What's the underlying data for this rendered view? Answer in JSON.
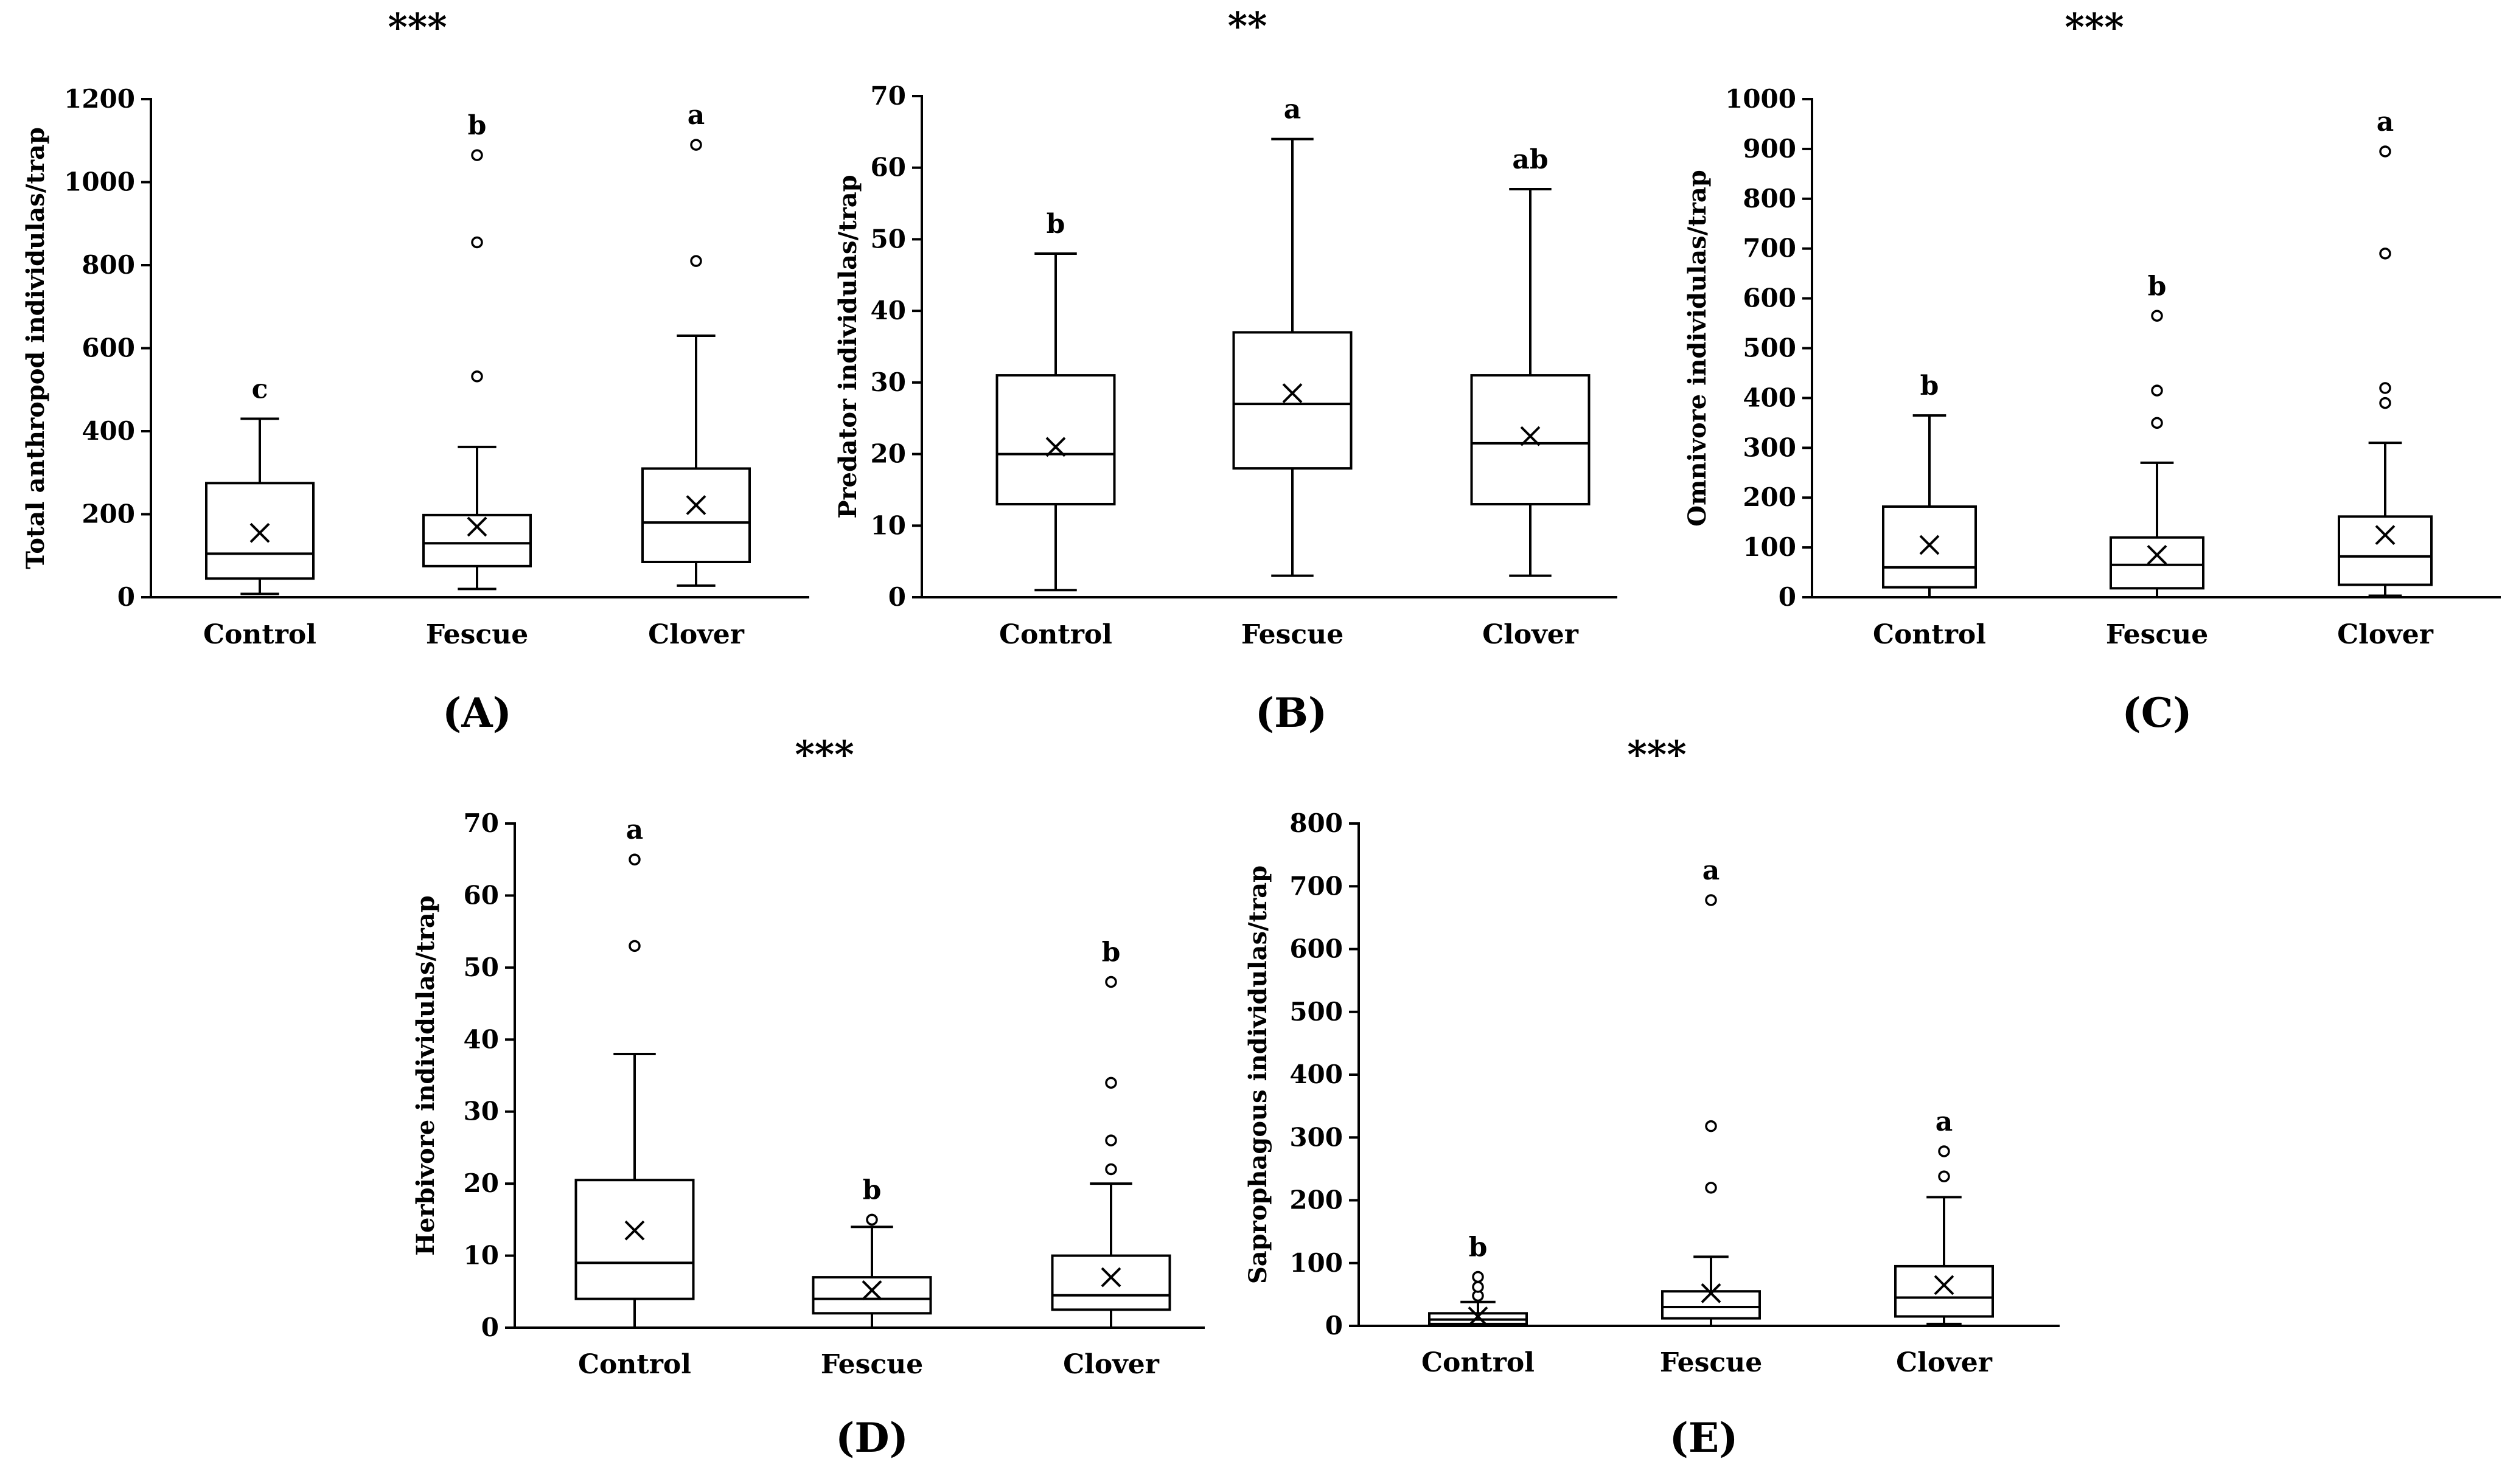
{
  "chart_data": [
    {
      "id": "A",
      "type": "box",
      "panel_label": "(A)",
      "significance": "***",
      "ylabel": "Total anthropod individulas/trap",
      "ylim": [
        0,
        1200
      ],
      "yticks": [
        0,
        200,
        400,
        600,
        800,
        1000,
        1200
      ],
      "categories": [
        "Control",
        "Fescue",
        "Clover"
      ],
      "boxes": [
        {
          "category": "Control",
          "min": 8,
          "q1": 45,
          "median": 105,
          "q3": 275,
          "max": 430,
          "mean": 155,
          "outliers": [],
          "letter": "c"
        },
        {
          "category": "Fescue",
          "min": 20,
          "q1": 75,
          "median": 130,
          "q3": 198,
          "max": 362,
          "mean": 170,
          "outliers": [
            532,
            855,
            1065
          ],
          "letter": "b"
        },
        {
          "category": "Clover",
          "min": 28,
          "q1": 85,
          "median": 180,
          "q3": 310,
          "max": 630,
          "mean": 222,
          "outliers": [
            810,
            1090
          ],
          "letter": "a"
        }
      ]
    },
    {
      "id": "B",
      "type": "box",
      "panel_label": "(B)",
      "significance": "**",
      "ylabel": "Predator individulas/trap",
      "ylim": [
        0,
        70
      ],
      "yticks": [
        0,
        10,
        20,
        30,
        40,
        50,
        60,
        70
      ],
      "categories": [
        "Control",
        "Fescue",
        "Clover"
      ],
      "boxes": [
        {
          "category": "Control",
          "min": 1,
          "q1": 13,
          "median": 20,
          "q3": 31,
          "max": 48,
          "mean": 21,
          "outliers": [],
          "letter": "b"
        },
        {
          "category": "Fescue",
          "min": 3,
          "q1": 18,
          "median": 27,
          "q3": 37,
          "max": 64,
          "mean": 28.5,
          "outliers": [],
          "letter": "a"
        },
        {
          "category": "Clover",
          "min": 3,
          "q1": 13,
          "median": 21.5,
          "q3": 31,
          "max": 57,
          "mean": 22.5,
          "outliers": [],
          "letter": "ab"
        }
      ]
    },
    {
      "id": "C",
      "type": "box",
      "panel_label": "(C)",
      "significance": "***",
      "ylabel": "Omnivore individulas/trap",
      "ylim": [
        0,
        1000
      ],
      "yticks": [
        0,
        100,
        200,
        300,
        400,
        500,
        600,
        700,
        800,
        900,
        1000
      ],
      "categories": [
        "Control",
        "Fescue",
        "Clover"
      ],
      "boxes": [
        {
          "category": "Control",
          "min": 0,
          "q1": 20,
          "median": 60,
          "q3": 182,
          "max": 365,
          "mean": 105,
          "outliers": [],
          "letter": "b"
        },
        {
          "category": "Fescue",
          "min": 0,
          "q1": 18,
          "median": 65,
          "q3": 120,
          "max": 270,
          "mean": 85,
          "outliers": [
            350,
            415,
            565
          ],
          "letter": "b"
        },
        {
          "category": "Clover",
          "min": 3,
          "q1": 25,
          "median": 82,
          "q3": 162,
          "max": 310,
          "mean": 125,
          "outliers": [
            390,
            420,
            690,
            895
          ],
          "letter": "a"
        }
      ]
    },
    {
      "id": "D",
      "type": "box",
      "panel_label": "(D)",
      "significance": "***",
      "ylabel": "Herbivore individulas/trap",
      "ylim": [
        0,
        70
      ],
      "yticks": [
        0,
        10,
        20,
        30,
        40,
        50,
        60,
        70
      ],
      "categories": [
        "Control",
        "Fescue",
        "Clover"
      ],
      "boxes": [
        {
          "category": "Control",
          "min": 0,
          "q1": 4,
          "median": 9,
          "q3": 20.5,
          "max": 38,
          "mean": 13.5,
          "outliers": [
            53,
            65
          ],
          "letter": "a"
        },
        {
          "category": "Fescue",
          "min": 0,
          "q1": 2,
          "median": 4,
          "q3": 7,
          "max": 14,
          "mean": 5.2,
          "outliers": [
            15
          ],
          "letter": "b"
        },
        {
          "category": "Clover",
          "min": 0,
          "q1": 2.5,
          "median": 4.5,
          "q3": 10,
          "max": 20,
          "mean": 7,
          "outliers": [
            22,
            26,
            34,
            48
          ],
          "letter": "b"
        }
      ]
    },
    {
      "id": "E",
      "type": "box",
      "panel_label": "(E)",
      "significance": "***",
      "ylabel": "Saprophagous individulas/trap",
      "ylim": [
        0,
        800
      ],
      "yticks": [
        0,
        100,
        200,
        300,
        400,
        500,
        600,
        700,
        800
      ],
      "categories": [
        "Control",
        "Fescue",
        "Clover"
      ],
      "boxes": [
        {
          "category": "Control",
          "min": 0,
          "q1": 3,
          "median": 10,
          "q3": 20,
          "max": 38,
          "mean": 15,
          "outliers": [
            48,
            62,
            78
          ],
          "letter": "b"
        },
        {
          "category": "Fescue",
          "min": 0,
          "q1": 12,
          "median": 30,
          "q3": 55,
          "max": 110,
          "mean": 52,
          "outliers": [
            220,
            318,
            678
          ],
          "letter": "a"
        },
        {
          "category": "Clover",
          "min": 3,
          "q1": 15,
          "median": 45,
          "q3": 95,
          "max": 205,
          "mean": 65,
          "outliers": [
            238,
            278
          ],
          "letter": "a"
        }
      ]
    }
  ]
}
